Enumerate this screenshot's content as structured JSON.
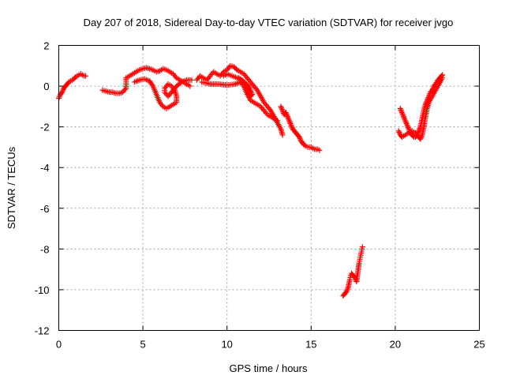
{
  "chart_data": {
    "type": "scatter",
    "title": "Day 207 of 2018, Sidereal Day-to-day VTEC variation (SDTVAR) for receiver jvgo",
    "xlabel": "GPS time / hours",
    "ylabel": "SDTVAR / TECUs",
    "xlim": [
      0,
      25
    ],
    "ylim": [
      -12,
      2
    ],
    "xticks": [
      0,
      5,
      10,
      15,
      20,
      25
    ],
    "yticks": [
      -12,
      -10,
      -8,
      -6,
      -4,
      -2,
      0,
      2
    ],
    "xtick_labels": [
      "0",
      "5",
      "10",
      "15",
      "20",
      "25"
    ],
    "ytick_labels": [
      "-12",
      "-10",
      "-8",
      "-6",
      "-4",
      "-2",
      "0",
      "2"
    ],
    "grid": true,
    "marker": "plus",
    "color": "#ff0000",
    "series": [
      {
        "name": "segment-1",
        "points": [
          [
            0.0,
            -0.6
          ],
          [
            0.1,
            -0.4
          ],
          [
            0.2,
            -0.3
          ],
          [
            0.3,
            -0.1
          ],
          [
            0.4,
            0.0
          ],
          [
            0.5,
            0.1
          ],
          [
            0.6,
            0.2
          ],
          [
            0.7,
            0.25
          ],
          [
            0.8,
            0.3
          ],
          [
            0.9,
            0.35
          ],
          [
            1.0,
            0.45
          ],
          [
            1.1,
            0.5
          ],
          [
            1.2,
            0.55
          ],
          [
            1.3,
            0.6
          ],
          [
            1.4,
            0.55
          ],
          [
            1.5,
            0.5
          ],
          [
            1.6,
            0.5
          ]
        ]
      },
      {
        "name": "segment-2",
        "points": [
          [
            2.6,
            -0.2
          ],
          [
            2.8,
            -0.25
          ],
          [
            3.0,
            -0.3
          ],
          [
            3.2,
            -0.3
          ],
          [
            3.4,
            -0.35
          ],
          [
            3.6,
            -0.35
          ],
          [
            3.8,
            -0.3
          ],
          [
            4.0,
            -0.1
          ],
          [
            4.0,
            0.4
          ],
          [
            4.2,
            0.5
          ],
          [
            4.4,
            0.6
          ],
          [
            4.6,
            0.7
          ],
          [
            4.8,
            0.8
          ],
          [
            5.0,
            0.85
          ],
          [
            5.2,
            0.9
          ],
          [
            5.4,
            0.85
          ],
          [
            5.6,
            0.8
          ],
          [
            5.8,
            0.7
          ],
          [
            6.0,
            0.75
          ],
          [
            6.2,
            0.85
          ],
          [
            6.4,
            0.8
          ],
          [
            6.6,
            0.7
          ],
          [
            6.8,
            0.6
          ],
          [
            7.0,
            0.4
          ],
          [
            7.2,
            0.3
          ],
          [
            7.4,
            0.2
          ],
          [
            7.6,
            0.1
          ],
          [
            7.8,
            0.0
          ]
        ]
      },
      {
        "name": "segment-2-loop",
        "points": [
          [
            4.5,
            0.2
          ],
          [
            4.8,
            0.3
          ],
          [
            5.1,
            0.35
          ],
          [
            5.4,
            0.25
          ],
          [
            5.6,
            0.0
          ],
          [
            5.8,
            -0.4
          ],
          [
            6.0,
            -0.8
          ],
          [
            6.2,
            -1.0
          ],
          [
            6.4,
            -1.1
          ],
          [
            6.6,
            -1.0
          ],
          [
            6.8,
            -0.9
          ],
          [
            7.0,
            -0.8
          ],
          [
            7.0,
            -0.5
          ],
          [
            6.9,
            -0.2
          ],
          [
            6.7,
            0.0
          ],
          [
            6.5,
            0.1
          ],
          [
            6.3,
            -0.1
          ],
          [
            6.3,
            -0.3
          ],
          [
            6.5,
            -0.5
          ],
          [
            6.7,
            -0.3
          ],
          [
            7.0,
            0.0
          ],
          [
            7.3,
            0.2
          ],
          [
            7.6,
            0.3
          ],
          [
            7.9,
            0.3
          ]
        ]
      },
      {
        "name": "segment-3",
        "points": [
          [
            8.2,
            0.3
          ],
          [
            8.4,
            0.5
          ],
          [
            8.6,
            0.4
          ],
          [
            8.8,
            0.3
          ],
          [
            9.0,
            0.5
          ],
          [
            9.2,
            0.7
          ],
          [
            9.4,
            0.6
          ],
          [
            9.6,
            0.5
          ],
          [
            9.8,
            0.7
          ],
          [
            10.0,
            0.8
          ],
          [
            10.2,
            1.0
          ],
          [
            10.4,
            0.95
          ],
          [
            10.6,
            0.8
          ],
          [
            10.8,
            0.7
          ],
          [
            11.0,
            0.6
          ],
          [
            11.2,
            0.4
          ],
          [
            11.4,
            0.2
          ],
          [
            11.6,
            0.0
          ],
          [
            11.8,
            -0.2
          ],
          [
            12.0,
            -0.5
          ],
          [
            12.2,
            -0.8
          ],
          [
            12.4,
            -1.0
          ],
          [
            12.6,
            -1.2
          ],
          [
            12.8,
            -1.5
          ],
          [
            13.0,
            -1.8
          ],
          [
            13.2,
            -2.1
          ],
          [
            13.3,
            -2.4
          ]
        ]
      },
      {
        "name": "segment-3-lower",
        "points": [
          [
            8.5,
            0.2
          ],
          [
            9.0,
            0.1
          ],
          [
            9.5,
            0.1
          ],
          [
            10.0,
            0.05
          ],
          [
            10.5,
            0.1
          ],
          [
            10.8,
            0.2
          ],
          [
            11.0,
            0.0
          ],
          [
            11.2,
            -0.4
          ],
          [
            11.4,
            -0.7
          ],
          [
            11.6,
            -0.8
          ],
          [
            11.8,
            -0.9
          ],
          [
            12.0,
            -1.0
          ],
          [
            12.2,
            -1.2
          ],
          [
            12.4,
            -1.4
          ],
          [
            12.6,
            -1.5
          ],
          [
            12.8,
            -1.6
          ],
          [
            13.0,
            -1.7
          ]
        ]
      },
      {
        "name": "segment-3-loop",
        "points": [
          [
            9.8,
            0.5
          ],
          [
            10.0,
            0.6
          ],
          [
            10.3,
            0.5
          ],
          [
            10.6,
            0.4
          ],
          [
            10.9,
            0.3
          ],
          [
            11.1,
            0.1
          ],
          [
            11.3,
            -0.2
          ],
          [
            11.4,
            -0.5
          ],
          [
            11.5,
            -0.4
          ],
          [
            11.3,
            0.0
          ],
          [
            11.0,
            0.2
          ],
          [
            10.7,
            0.4
          ]
        ]
      },
      {
        "name": "segment-4",
        "points": [
          [
            13.2,
            -1.0
          ],
          [
            13.3,
            -1.2
          ],
          [
            13.4,
            -1.4
          ],
          [
            13.5,
            -1.3
          ],
          [
            13.6,
            -1.5
          ],
          [
            13.7,
            -1.7
          ],
          [
            13.8,
            -1.9
          ],
          [
            13.9,
            -2.1
          ],
          [
            14.0,
            -2.2
          ],
          [
            14.1,
            -2.3
          ],
          [
            14.2,
            -2.4
          ],
          [
            14.3,
            -2.5
          ],
          [
            14.4,
            -2.7
          ],
          [
            14.5,
            -2.8
          ],
          [
            14.6,
            -2.9
          ],
          [
            14.8,
            -3.0
          ],
          [
            15.0,
            -3.0
          ],
          [
            15.2,
            -3.1
          ],
          [
            15.4,
            -3.1
          ],
          [
            15.5,
            -3.15
          ]
        ]
      },
      {
        "name": "segment-5",
        "points": [
          [
            16.9,
            -10.3
          ],
          [
            17.0,
            -10.2
          ],
          [
            17.1,
            -10.1
          ],
          [
            17.2,
            -9.9
          ],
          [
            17.3,
            -9.5
          ],
          [
            17.35,
            -9.3
          ],
          [
            17.4,
            -9.2
          ],
          [
            17.5,
            -9.3
          ],
          [
            17.6,
            -9.4
          ],
          [
            17.7,
            -9.6
          ],
          [
            17.75,
            -9.3
          ],
          [
            17.8,
            -9.0
          ],
          [
            17.85,
            -8.7
          ],
          [
            17.9,
            -8.5
          ],
          [
            17.95,
            -8.3
          ],
          [
            18.0,
            -8.1
          ],
          [
            18.05,
            -7.9
          ]
        ]
      },
      {
        "name": "segment-6",
        "points": [
          [
            20.3,
            -1.1
          ],
          [
            20.4,
            -1.3
          ],
          [
            20.5,
            -1.5
          ],
          [
            20.6,
            -1.7
          ],
          [
            20.7,
            -1.9
          ],
          [
            20.8,
            -2.1
          ],
          [
            20.9,
            -2.3
          ],
          [
            21.0,
            -2.4
          ],
          [
            21.1,
            -2.5
          ],
          [
            21.2,
            -2.5
          ],
          [
            21.3,
            -2.4
          ],
          [
            21.4,
            -2.2
          ],
          [
            21.5,
            -2.0
          ],
          [
            21.6,
            -1.6
          ],
          [
            21.7,
            -1.2
          ],
          [
            21.8,
            -0.9
          ],
          [
            21.9,
            -0.7
          ],
          [
            22.0,
            -0.5
          ],
          [
            22.1,
            -0.3
          ],
          [
            22.2,
            -0.2
          ],
          [
            22.3,
            0.0
          ],
          [
            22.4,
            0.1
          ],
          [
            22.5,
            0.25
          ],
          [
            22.6,
            0.35
          ],
          [
            22.7,
            0.45
          ],
          [
            22.8,
            0.55
          ]
        ]
      },
      {
        "name": "segment-6-lower",
        "points": [
          [
            20.2,
            -2.2
          ],
          [
            20.3,
            -2.4
          ],
          [
            20.4,
            -2.5
          ],
          [
            20.6,
            -2.4
          ],
          [
            20.8,
            -2.3
          ],
          [
            21.0,
            -2.2
          ],
          [
            21.2,
            -2.3
          ],
          [
            21.4,
            -2.5
          ],
          [
            21.5,
            -2.6
          ],
          [
            21.6,
            -2.4
          ],
          [
            21.7,
            -2.0
          ],
          [
            21.8,
            -1.5
          ],
          [
            21.9,
            -1.1
          ],
          [
            22.0,
            -0.8
          ],
          [
            22.2,
            -0.5
          ],
          [
            22.4,
            -0.2
          ],
          [
            22.6,
            0.1
          ],
          [
            22.8,
            0.4
          ]
        ]
      }
    ]
  }
}
